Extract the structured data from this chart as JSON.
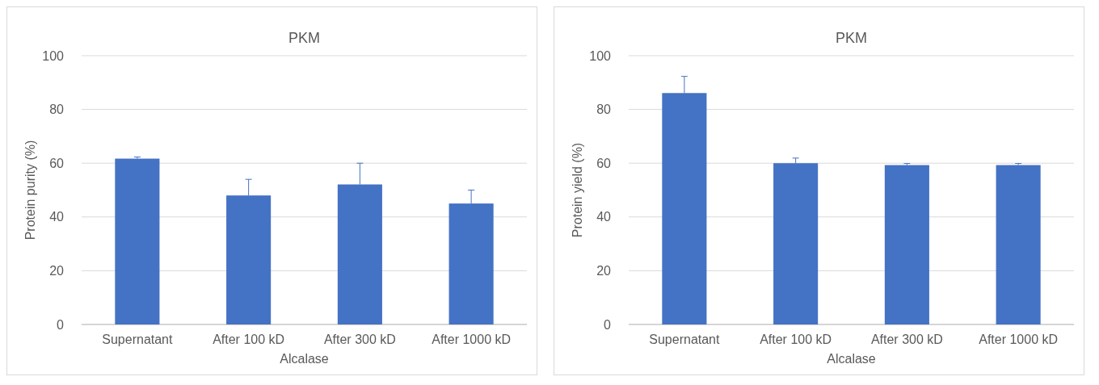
{
  "chart_data": [
    {
      "type": "bar",
      "title": "PKM",
      "xlabel": "Alcalase",
      "ylabel": "Protein purity (%)",
      "categories": [
        "Supernatant",
        "After 100 kD",
        "After 300 kD",
        "After 1000 kD"
      ],
      "values": [
        61.7,
        48,
        52.1,
        45
      ],
      "errors": [
        [
          61.7,
          62.3
        ],
        [
          48,
          54
        ],
        [
          52.1,
          60
        ],
        [
          45,
          50
        ]
      ],
      "color": "#4472c4",
      "ylim": [
        0,
        100
      ],
      "yticks": [
        0,
        20,
        40,
        60,
        80,
        100
      ],
      "grid": "y"
    },
    {
      "type": "bar",
      "title": "PKM",
      "xlabel": "Alcalase",
      "ylabel": "Protein yield (%)",
      "categories": [
        "Supernatant",
        "After 100 kD",
        "After 300 kD",
        "After 1000 kD"
      ],
      "values": [
        86.1,
        60,
        59.3,
        59.3
      ],
      "errors": [
        [
          86.1,
          92.3
        ],
        [
          60,
          61.9
        ],
        [
          59.3,
          59.9
        ],
        [
          59.3,
          59.9
        ]
      ],
      "color": "#4472c4",
      "ylim": [
        0,
        100
      ],
      "yticks": [
        0,
        20,
        40,
        60,
        80,
        100
      ],
      "grid": "y"
    }
  ]
}
